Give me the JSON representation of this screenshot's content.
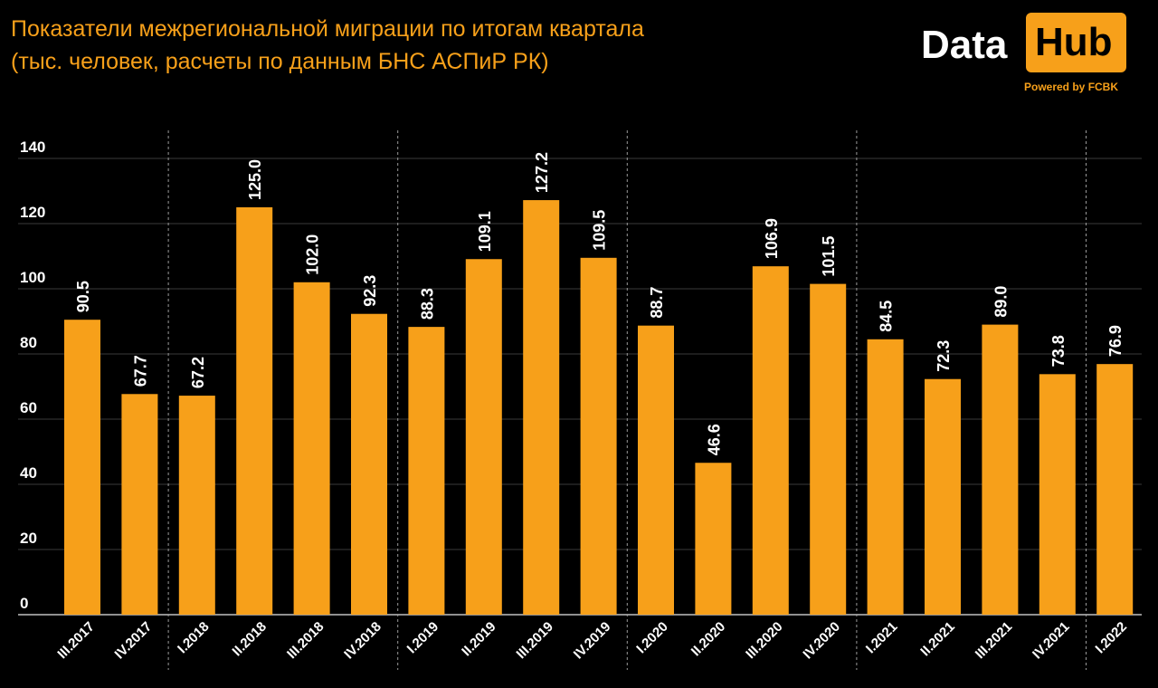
{
  "title_line1": "Показатели межрегиональной миграции по итогам квартала",
  "title_line2": "(тыс. человек, расчеты по данным БНС АСПиР РК)",
  "logo": {
    "word_data": "Data",
    "word_hub": "Hub",
    "powered": "Powered by FCBK"
  },
  "colors": {
    "background": "#000000",
    "bar": "#f7a01a",
    "text": "#ffffff",
    "accent": "#f7a01a"
  },
  "chart_data": {
    "type": "bar",
    "categories": [
      "III.2017",
      "IV.2017",
      "I.2018",
      "II.2018",
      "III.2018",
      "IV.2018",
      "I.2019",
      "II.2019",
      "III.2019",
      "IV.2019",
      "I.2020",
      "II.2020",
      "III.2020",
      "IV.2020",
      "I.2021",
      "II.2021",
      "III.2021",
      "IV.2021",
      "I.2022"
    ],
    "values": [
      90.5,
      67.7,
      67.2,
      125.0,
      102.0,
      92.3,
      88.3,
      109.1,
      127.2,
      109.5,
      88.7,
      46.6,
      106.9,
      101.5,
      84.5,
      72.3,
      89.0,
      73.8,
      76.9
    ],
    "value_labels": [
      "90.5",
      "67.7",
      "67.2",
      "125.0",
      "102.0",
      "92.3",
      "88.3",
      "109.1",
      "127.2",
      "109.5",
      "88.7",
      "46.6",
      "106.9",
      "101.5",
      "84.5",
      "72.3",
      "89.0",
      "73.8",
      "76.9"
    ],
    "y_ticks": [
      0,
      20,
      40,
      60,
      80,
      100,
      120,
      140
    ],
    "ylim": [
      0,
      140
    ],
    "grid": true,
    "year_separators_after": [
      "IV.2017",
      "IV.2018",
      "IV.2019",
      "IV.2020",
      "IV.2021"
    ],
    "xlabel": "",
    "ylabel": ""
  }
}
